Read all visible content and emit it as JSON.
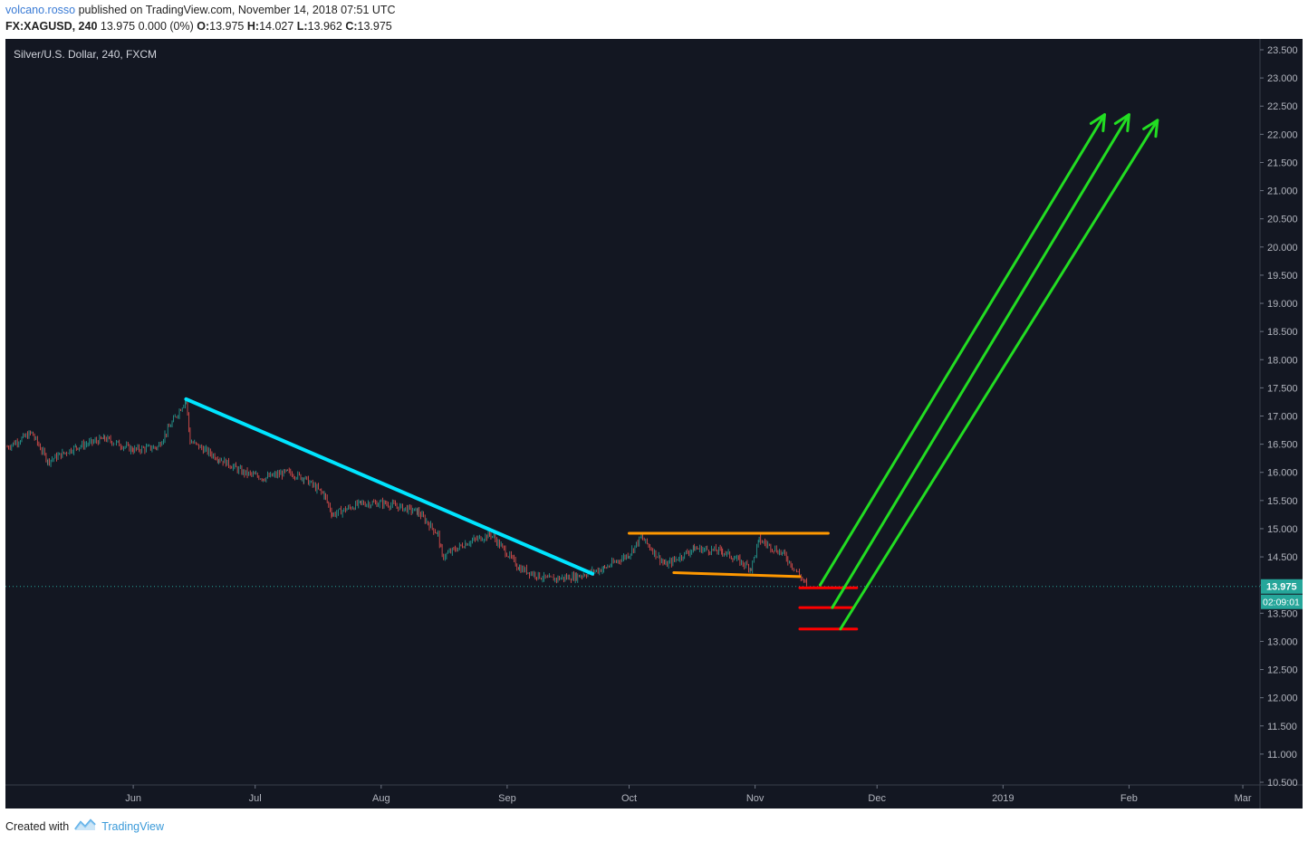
{
  "header": {
    "author": "volcano.rosso",
    "published_text": "published on TradingView.com, November 14, 2018 07:51 UTC"
  },
  "ohlc": {
    "symbol": "FX:XAGUSD, 240",
    "last": "13.975 0.000 (0%)",
    "o_label": "O:",
    "o": "13.975",
    "h_label": "H:",
    "h": "14.027",
    "l_label": "L:",
    "l": "13.962",
    "c_label": "C:",
    "c": "13.975"
  },
  "footer": {
    "created_with": "Created with",
    "brand": "TradingView"
  },
  "colors": {
    "background": "#131722",
    "candle_up": "#26a69a",
    "candle_down": "#ef5350",
    "trendline": "#00e5ff",
    "channel": "#ff9800",
    "support": "#ff0000",
    "projection": "#22dd22",
    "price_tag": "#26a69a"
  },
  "chart_data": {
    "type": "candlestick",
    "title": "Silver/U.S. Dollar, 240, FXCM",
    "current_price": "13.975",
    "countdown": "02:09:01",
    "ylim": [
      10.5,
      23.5
    ],
    "y_ticks": [
      "10.500",
      "11.000",
      "11.500",
      "12.000",
      "12.500",
      "13.000",
      "13.500",
      "14.000",
      "14.500",
      "15.000",
      "15.500",
      "16.000",
      "16.500",
      "17.000",
      "17.500",
      "18.000",
      "18.500",
      "19.000",
      "19.500",
      "20.000",
      "20.500",
      "21.000",
      "21.500",
      "22.000",
      "22.500",
      "23.000",
      "23.500"
    ],
    "x_ticks": [
      "Jun",
      "Jul",
      "Aug",
      "Sep",
      "Oct",
      "Nov",
      "Dec",
      "2019",
      "Feb",
      "Mar"
    ],
    "price_path": [
      [
        "2018-05-01",
        16.45
      ],
      [
        "2018-05-07",
        16.7
      ],
      [
        "2018-05-11",
        16.2
      ],
      [
        "2018-05-18",
        16.45
      ],
      [
        "2018-05-25",
        16.6
      ],
      [
        "2018-06-01",
        16.4
      ],
      [
        "2018-06-07",
        16.45
      ],
      [
        "2018-06-14",
        17.3
      ],
      [
        "2018-06-15",
        16.55
      ],
      [
        "2018-06-22",
        16.25
      ],
      [
        "2018-06-28",
        16.0
      ],
      [
        "2018-07-03",
        15.9
      ],
      [
        "2018-07-09",
        16.0
      ],
      [
        "2018-07-13",
        15.9
      ],
      [
        "2018-07-18",
        15.6
      ],
      [
        "2018-07-20",
        15.25
      ],
      [
        "2018-07-27",
        15.45
      ],
      [
        "2018-08-02",
        15.45
      ],
      [
        "2018-08-10",
        15.3
      ],
      [
        "2018-08-15",
        14.9
      ],
      [
        "2018-08-16",
        14.5
      ],
      [
        "2018-08-22",
        14.75
      ],
      [
        "2018-08-28",
        14.9
      ],
      [
        "2018-09-04",
        14.3
      ],
      [
        "2018-09-11",
        14.1
      ],
      [
        "2018-09-18",
        14.15
      ],
      [
        "2018-09-25",
        14.3
      ],
      [
        "2018-10-01",
        14.55
      ],
      [
        "2018-10-04",
        14.85
      ],
      [
        "2018-10-10",
        14.35
      ],
      [
        "2018-10-17",
        14.65
      ],
      [
        "2018-10-24",
        14.6
      ],
      [
        "2018-10-31",
        14.3
      ],
      [
        "2018-11-02",
        14.8
      ],
      [
        "2018-11-08",
        14.55
      ],
      [
        "2018-11-14",
        13.975
      ]
    ],
    "drawings": [
      {
        "kind": "trendline",
        "from": [
          "2018-06-14",
          17.3
        ],
        "to": [
          "2018-09-22",
          14.2
        ]
      },
      {
        "kind": "channel-top",
        "from": [
          "2018-10-01",
          14.92
        ],
        "to": [
          "2018-11-19",
          14.92
        ]
      },
      {
        "kind": "channel-bottom",
        "from": [
          "2018-10-12",
          14.22
        ],
        "to": [
          "2018-11-12",
          14.15
        ]
      },
      {
        "kind": "support",
        "from": [
          "2018-11-12",
          13.95
        ],
        "to": [
          "2018-11-26",
          13.95
        ]
      },
      {
        "kind": "support",
        "from": [
          "2018-11-12",
          13.6
        ],
        "to": [
          "2018-11-25",
          13.6
        ]
      },
      {
        "kind": "support",
        "from": [
          "2018-11-12",
          13.22
        ],
        "to": [
          "2018-11-26",
          13.22
        ]
      },
      {
        "kind": "arrow",
        "from": [
          "2018-11-17",
          14.0
        ],
        "to": [
          "2019-01-26",
          22.35
        ]
      },
      {
        "kind": "arrow",
        "from": [
          "2018-11-20",
          13.6
        ],
        "to": [
          "2019-02-01",
          22.35
        ]
      },
      {
        "kind": "arrow",
        "from": [
          "2018-11-22",
          13.22
        ],
        "to": [
          "2019-02-08",
          22.25
        ]
      }
    ]
  }
}
